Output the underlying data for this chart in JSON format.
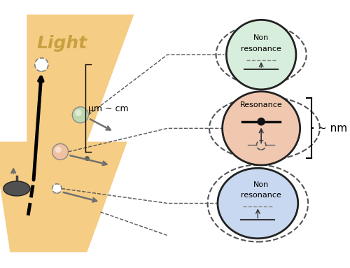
{
  "light_arrow_color": "#F5C878",
  "light_label": "Light",
  "light_label_color": "#C8A040",
  "mu_cm_label": "μm ~ cm",
  "nm_label": "~ nm",
  "top_circle_label": [
    "Non",
    "resonance"
  ],
  "top_circle_bg": "#d8eedd",
  "mid_circle_label": "Resonance",
  "mid_circle_bg": "#f0c8b0",
  "bot_circle_label": [
    "Non",
    "resonance"
  ],
  "bot_circle_bg": "#c8d8f0",
  "dashed_color": "#555555",
  "arrow_color": "#808080",
  "black_arrow_color": "#111111",
  "fig_bg": "#ffffff"
}
